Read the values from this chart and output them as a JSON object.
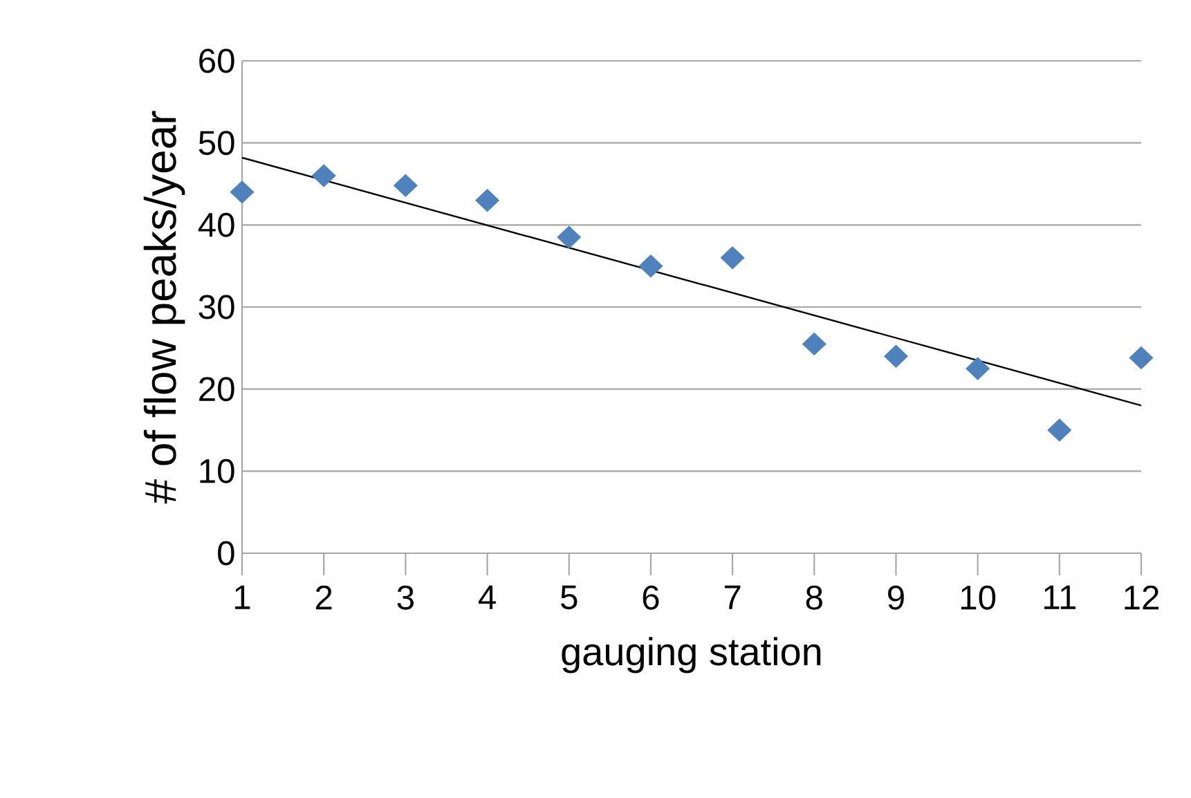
{
  "chart_data": {
    "type": "scatter",
    "xlabel": "gauging station",
    "ylabel": "# of flow peaks/year",
    "x": [
      1,
      2,
      3,
      4,
      5,
      6,
      7,
      8,
      9,
      10,
      11,
      12
    ],
    "series": [
      {
        "color": "#4f81bd",
        "values": [
          44,
          46,
          44.8,
          43,
          38.5,
          35,
          36,
          25.5,
          24,
          22.5,
          15,
          23.8
        ],
        "marker": "diamond"
      },
      {
        "type": "line",
        "color": "#000000",
        "x": [
          1,
          12
        ],
        "values": [
          48.2,
          18
        ],
        "marker": "none"
      }
    ],
    "xlim": [
      1,
      12
    ],
    "xticks": [
      1,
      2,
      3,
      4,
      5,
      6,
      7,
      8,
      9,
      10,
      11,
      12
    ],
    "ylim": [
      0,
      60
    ],
    "yticks": [
      0,
      10,
      20,
      30,
      40,
      50,
      60
    ],
    "grid": "y"
  }
}
